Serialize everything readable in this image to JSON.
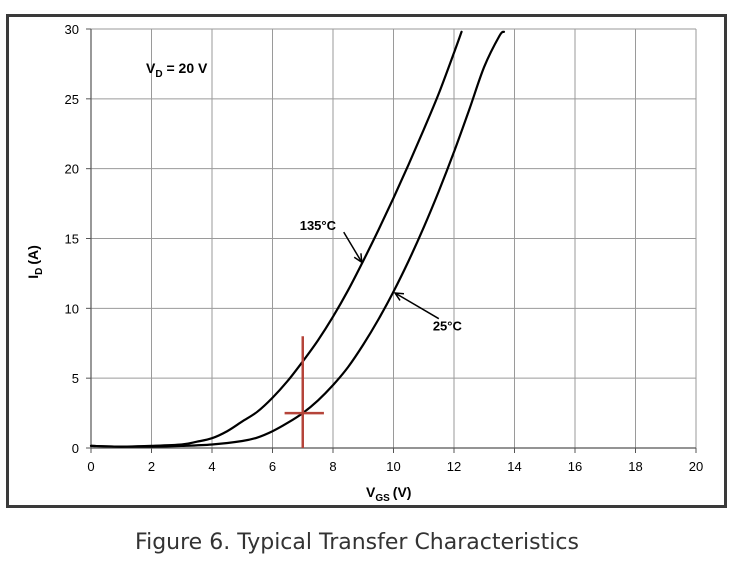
{
  "caption": "Figure 6. Typical Transfer Characteristics",
  "chart_data": {
    "type": "line",
    "xlabel": {
      "main": "V",
      "sub": "GS",
      "unit": "(V)"
    },
    "ylabel": {
      "main": "I",
      "sub": "D",
      "unit": "(A)"
    },
    "xlim": [
      0,
      20
    ],
    "ylim": [
      0,
      30
    ],
    "xticks": [
      0,
      2,
      4,
      6,
      8,
      10,
      12,
      14,
      16,
      18,
      20
    ],
    "yticks": [
      0,
      5,
      10,
      15,
      20,
      25,
      30
    ],
    "grid": true,
    "condition": {
      "main": "V",
      "sub": "D",
      "rest": " = 20 V"
    },
    "series": [
      {
        "name": "135°C",
        "x": [
          0,
          1,
          2,
          3,
          3.5,
          4,
          4.5,
          5,
          5.5,
          6,
          6.5,
          7,
          7.5,
          8,
          8.5,
          9,
          9.5,
          10,
          10.5,
          11,
          11.5,
          12,
          12.25
        ],
        "y": [
          0.15,
          0.1,
          0.15,
          0.25,
          0.45,
          0.7,
          1.2,
          1.9,
          2.6,
          3.6,
          4.8,
          6.2,
          7.7,
          9.4,
          11.3,
          13.4,
          15.6,
          17.9,
          20.3,
          22.8,
          25.4,
          28.3,
          29.8
        ]
      },
      {
        "name": "25°C",
        "x": [
          0,
          1,
          2,
          3,
          4,
          5,
          5.5,
          6,
          6.5,
          7,
          7.5,
          8,
          8.5,
          9,
          9.5,
          10,
          10.5,
          11,
          11.5,
          12,
          12.5,
          13,
          13.5,
          13.65
        ],
        "y": [
          0.15,
          0.1,
          0.1,
          0.15,
          0.25,
          0.5,
          0.75,
          1.2,
          1.8,
          2.5,
          3.4,
          4.5,
          5.8,
          7.4,
          9.2,
          11.2,
          13.4,
          15.8,
          18.4,
          21.2,
          24.2,
          27.3,
          29.5,
          29.8
        ]
      }
    ],
    "annotations": [
      {
        "text": "135°C",
        "label_at": [
          6.9,
          15.6
        ],
        "arrow_to": [
          8.95,
          13.3
        ]
      },
      {
        "text": "25°C",
        "label_at": [
          11.3,
          8.4
        ],
        "arrow_to": [
          10.05,
          11.1
        ]
      }
    ],
    "marker": {
      "x": 7,
      "y": 2.5,
      "color": "#b5443a",
      "vspan": [
        0,
        8
      ],
      "hspan": [
        6.4,
        7.7
      ]
    }
  }
}
